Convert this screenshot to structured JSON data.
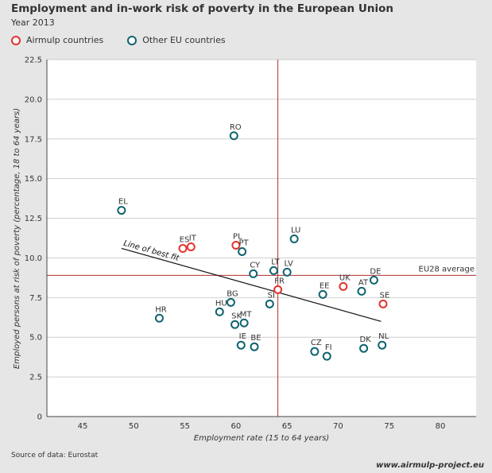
{
  "header": {
    "title": "Employment and in-work risk of poverty in the European Union",
    "subtitle": "Year 2013"
  },
  "legend": {
    "items": [
      {
        "label": "Airmulp countries",
        "color": "#e5322d"
      },
      {
        "label": "Other EU countries",
        "color": "#0f6470"
      }
    ]
  },
  "footer": {
    "source": "Source of data: Eurostat",
    "website": "www.airmulp-project.eu"
  },
  "chart_data": {
    "type": "scatter",
    "xlabel": "Employment rate (15 to 64 years)",
    "ylabel": "Employed persons at risk of poverty (percentage, 18 to 64 years)",
    "xlim": [
      41.5,
      83.5
    ],
    "ylim": [
      0,
      22.5
    ],
    "xticks": [
      "45",
      "50",
      "55",
      "60",
      "65",
      "70",
      "75",
      "80"
    ],
    "xtick_values": [
      45,
      50,
      55,
      60,
      65,
      70,
      75,
      80
    ],
    "yticks": [
      "0",
      "2.5",
      "5.0",
      "7.5",
      "10.0",
      "12.5",
      "15.0",
      "17.5",
      "20.0",
      "22.5"
    ],
    "ytick_values": [
      0,
      2.5,
      5.0,
      7.5,
      10.0,
      12.5,
      15.0,
      17.5,
      20.0,
      22.5
    ],
    "grid": "horizontal",
    "eu_average": {
      "label": "EU28 average",
      "x": 64.1,
      "y": 8.9,
      "color": "#b03030"
    },
    "best_fit": {
      "label": "Line of best fit",
      "x": [
        48.8,
        74.2
      ],
      "y": [
        10.6,
        6.0
      ]
    },
    "colors": {
      "airmulp": "#e5322d",
      "other": "#0f6470"
    },
    "points": [
      {
        "label": "RO",
        "x": 59.8,
        "y": 17.7,
        "group": "other"
      },
      {
        "label": "EL",
        "x": 48.8,
        "y": 13.0,
        "group": "other"
      },
      {
        "label": "LU",
        "x": 65.7,
        "y": 11.2,
        "group": "other"
      },
      {
        "label": "PL",
        "x": 60.0,
        "y": 10.8,
        "group": "airmulp"
      },
      {
        "label": "ES",
        "x": 54.8,
        "y": 10.6,
        "group": "airmulp"
      },
      {
        "label": "IT",
        "x": 55.6,
        "y": 10.7,
        "group": "airmulp"
      },
      {
        "label": "PT",
        "x": 60.6,
        "y": 10.4,
        "group": "other"
      },
      {
        "label": "CY",
        "x": 61.7,
        "y": 9.0,
        "group": "other"
      },
      {
        "label": "LT",
        "x": 63.7,
        "y": 9.2,
        "group": "other"
      },
      {
        "label": "LV",
        "x": 65.0,
        "y": 9.1,
        "group": "other"
      },
      {
        "label": "DE",
        "x": 73.5,
        "y": 8.6,
        "group": "other"
      },
      {
        "label": "UK",
        "x": 70.5,
        "y": 8.2,
        "group": "airmulp"
      },
      {
        "label": "FR",
        "x": 64.1,
        "y": 8.0,
        "group": "airmulp"
      },
      {
        "label": "AT",
        "x": 72.3,
        "y": 7.9,
        "group": "other"
      },
      {
        "label": "EE",
        "x": 68.5,
        "y": 7.7,
        "group": "other"
      },
      {
        "label": "SE",
        "x": 74.4,
        "y": 7.1,
        "group": "airmulp"
      },
      {
        "label": "SI",
        "x": 63.3,
        "y": 7.1,
        "group": "other"
      },
      {
        "label": "BG",
        "x": 59.5,
        "y": 7.2,
        "group": "other"
      },
      {
        "label": "HU",
        "x": 58.4,
        "y": 6.6,
        "group": "other"
      },
      {
        "label": "HR",
        "x": 52.5,
        "y": 6.2,
        "group": "other"
      },
      {
        "label": "SK",
        "x": 59.9,
        "y": 5.8,
        "group": "other"
      },
      {
        "label": "MT",
        "x": 60.8,
        "y": 5.9,
        "group": "other"
      },
      {
        "label": "IE",
        "x": 60.5,
        "y": 4.5,
        "group": "other"
      },
      {
        "label": "BE",
        "x": 61.8,
        "y": 4.4,
        "group": "other"
      },
      {
        "label": "CZ",
        "x": 67.7,
        "y": 4.1,
        "group": "other"
      },
      {
        "label": "FI",
        "x": 68.9,
        "y": 3.8,
        "group": "other"
      },
      {
        "label": "DK",
        "x": 72.5,
        "y": 4.3,
        "group": "other"
      },
      {
        "label": "NL",
        "x": 74.3,
        "y": 4.5,
        "group": "other"
      }
    ]
  }
}
